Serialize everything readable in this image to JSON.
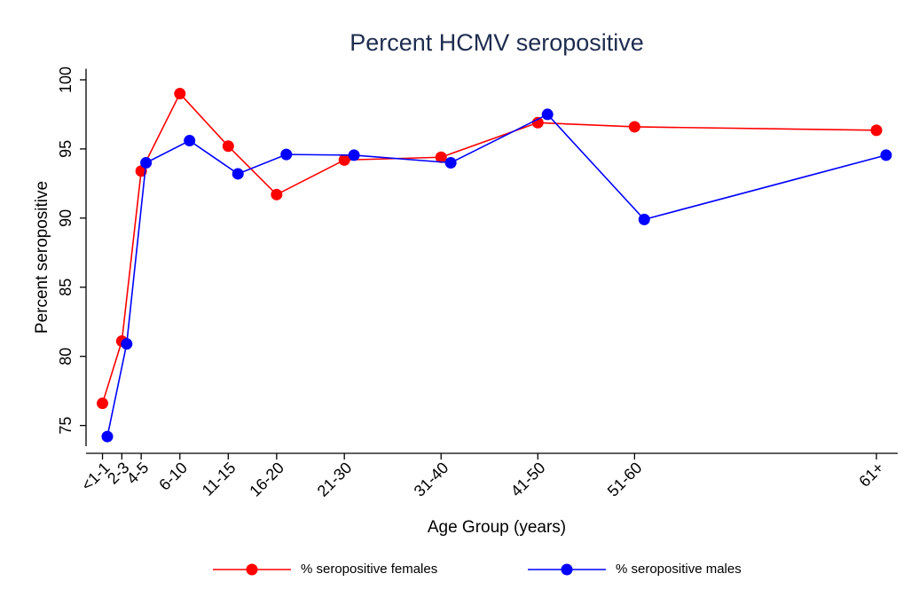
{
  "chart_data": {
    "type": "line",
    "title": "Percent HCMV seropositive",
    "x_label": "Age Group (years)",
    "y_label": "Percent seropositive",
    "xlim": [
      -1.2,
      82.7
    ],
    "ylim": [
      73.5,
      100.8
    ],
    "xticks": [
      {
        "value": 0.5,
        "label": "<1-1"
      },
      {
        "value": 2.5,
        "label": "2-3"
      },
      {
        "value": 4.5,
        "label": "4-5"
      },
      {
        "value": 8.5,
        "label": "6-10"
      },
      {
        "value": 13.5,
        "label": "11-15"
      },
      {
        "value": 18.5,
        "label": "16-20"
      },
      {
        "value": 25.5,
        "label": "21-30"
      },
      {
        "value": 35.5,
        "label": "31-40"
      },
      {
        "value": 45.5,
        "label": "41-50"
      },
      {
        "value": 55.5,
        "label": "51-60"
      },
      {
        "value": 80.5,
        "label": "61+"
      }
    ],
    "yticks": [
      75,
      80,
      85,
      90,
      95,
      100
    ],
    "grid": false,
    "legend": "bottom",
    "series": [
      {
        "name": "% seropositive females",
        "color": "#ff0000",
        "x": [
          0.5,
          2.5,
          4.5,
          8.5,
          13.5,
          18.5,
          25.5,
          35.5,
          45.5,
          55.5,
          80.5
        ],
        "values": [
          76.6,
          81.1,
          93.4,
          99.0,
          95.2,
          91.7,
          94.2,
          94.4,
          96.9,
          96.6,
          96.35
        ]
      },
      {
        "name": "% seropositive males",
        "color": "#0000ff",
        "x": [
          1,
          3,
          5,
          9.5,
          14.5,
          19.5,
          26.5,
          36.5,
          46.5,
          56.5,
          81.5
        ],
        "values": [
          74.2,
          80.9,
          94.0,
          95.6,
          93.2,
          94.6,
          94.55,
          94.0,
          97.5,
          89.9,
          94.55
        ]
      }
    ]
  }
}
